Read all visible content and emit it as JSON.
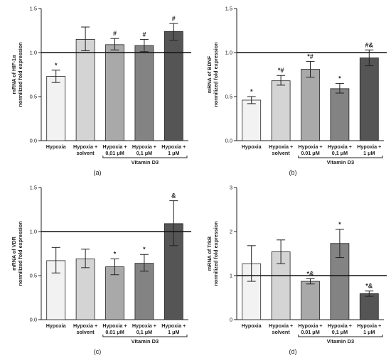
{
  "figure": {
    "panels": [
      {
        "id": "a",
        "panel_label": "(a)",
        "group_label": "Vitamin D3",
        "ytick_labels": [
          "0.0",
          "0.5",
          "1.0",
          "1.5"
        ]
      },
      {
        "id": "b",
        "panel_label": "(b)",
        "group_label": "Vitamin D3",
        "ytick_labels": [
          "0.0",
          "0.5",
          "1.0",
          "1.5"
        ]
      },
      {
        "id": "c",
        "panel_label": "(c)",
        "group_label": "Vitamin D3",
        "ytick_labels": [
          "0.0",
          "0.5",
          "1.0",
          "1.5"
        ]
      },
      {
        "id": "d",
        "panel_label": "(d)",
        "group_label": "Vitamin D3",
        "ytick_labels": [
          "0",
          "1",
          "2",
          "3"
        ]
      }
    ]
  },
  "chart_data": [
    {
      "type": "bar",
      "ylabel": [
        "mRNA of HIF-1α",
        "normilized fold expression"
      ],
      "categories": [
        [
          "Hypoxia"
        ],
        [
          "Hypoxia +",
          "solvent"
        ],
        [
          "Hypoxia +",
          "0,01 μM"
        ],
        [
          "Hypoxia +",
          "0,1 μM"
        ],
        [
          "Hypoxia +",
          "1 μM"
        ]
      ],
      "values": [
        0.73,
        1.15,
        1.09,
        1.08,
        1.24
      ],
      "err_low": [
        0.07,
        0.13,
        0.06,
        0.07,
        0.1
      ],
      "err_high": [
        0.07,
        0.14,
        0.07,
        0.07,
        0.09
      ],
      "significance": [
        "*",
        "",
        "#",
        "#",
        "#"
      ],
      "ylim": [
        0,
        1.5
      ],
      "yticks": [
        0,
        0.5,
        1.0,
        1.5
      ],
      "reference_line": 1.0,
      "bar_colors": [
        "#f2f2f2",
        "#d4d4d4",
        "#a9a9a9",
        "#838383",
        "#555555"
      ]
    },
    {
      "type": "bar",
      "ylabel": [
        "mRNA of BDNF",
        "normilized fold expression"
      ],
      "categories": [
        [
          "Hypoxia"
        ],
        [
          "Hypoxia +",
          "solvent"
        ],
        [
          "Hypoxia +",
          "0.01 μM"
        ],
        [
          "Hypoxia +",
          "0,1 μM"
        ],
        [
          "Hypoxia +",
          "1 μM"
        ]
      ],
      "values": [
        0.46,
        0.68,
        0.81,
        0.59,
        0.94
      ],
      "err_low": [
        0.04,
        0.05,
        0.09,
        0.05,
        0.09
      ],
      "err_high": [
        0.04,
        0.06,
        0.09,
        0.06,
        0.09
      ],
      "significance": [
        "*",
        "*#",
        "*#",
        "*",
        "#&"
      ],
      "ylim": [
        0,
        1.5
      ],
      "yticks": [
        0,
        0.5,
        1.0,
        1.5
      ],
      "reference_line": 1.0,
      "bar_colors": [
        "#f2f2f2",
        "#d4d4d4",
        "#a9a9a9",
        "#838383",
        "#555555"
      ]
    },
    {
      "type": "bar",
      "ylabel": [
        "mRNA of VDR",
        "normilized fold expression"
      ],
      "categories": [
        [
          "Hypoxia"
        ],
        [
          "Hypoxia +",
          "solvent"
        ],
        [
          "Hypoxia +",
          "0.01 μM"
        ],
        [
          "Hypoxia +",
          "0,1 μM"
        ],
        [
          "Hypoxia +",
          "1 μM"
        ]
      ],
      "values": [
        0.67,
        0.69,
        0.6,
        0.64,
        1.09
      ],
      "err_low": [
        0.14,
        0.1,
        0.09,
        0.09,
        0.25
      ],
      "err_high": [
        0.15,
        0.11,
        0.09,
        0.1,
        0.26
      ],
      "significance": [
        "",
        "",
        "*",
        "*",
        "&"
      ],
      "ylim": [
        0,
        1.5
      ],
      "yticks": [
        0,
        0.5,
        1.0,
        1.5
      ],
      "reference_line": 1.0,
      "bar_colors": [
        "#f2f2f2",
        "#d4d4d4",
        "#a9a9a9",
        "#838383",
        "#555555"
      ]
    },
    {
      "type": "bar",
      "ylabel": [
        "mRNA of TrkB",
        "normilized fold expression"
      ],
      "categories": [
        [
          "Hypoxia"
        ],
        [
          "Hypoxia +",
          "solvent"
        ],
        [
          "Hypoxia +",
          "0.01 μM"
        ],
        [
          "Hypoxia +",
          "0,1 μM"
        ],
        [
          "Hypoxia +",
          "1 μM"
        ]
      ],
      "values": [
        1.27,
        1.54,
        0.87,
        1.73,
        0.59
      ],
      "err_low": [
        0.4,
        0.27,
        0.06,
        0.32,
        0.06
      ],
      "err_high": [
        0.41,
        0.27,
        0.06,
        0.32,
        0.06
      ],
      "significance": [
        "",
        "",
        "*&",
        "*",
        "*&"
      ],
      "ylim": [
        0,
        3
      ],
      "yticks": [
        0,
        1,
        2,
        3
      ],
      "reference_line": 1.0,
      "bar_colors": [
        "#f2f2f2",
        "#d4d4d4",
        "#a9a9a9",
        "#838383",
        "#555555"
      ]
    }
  ]
}
